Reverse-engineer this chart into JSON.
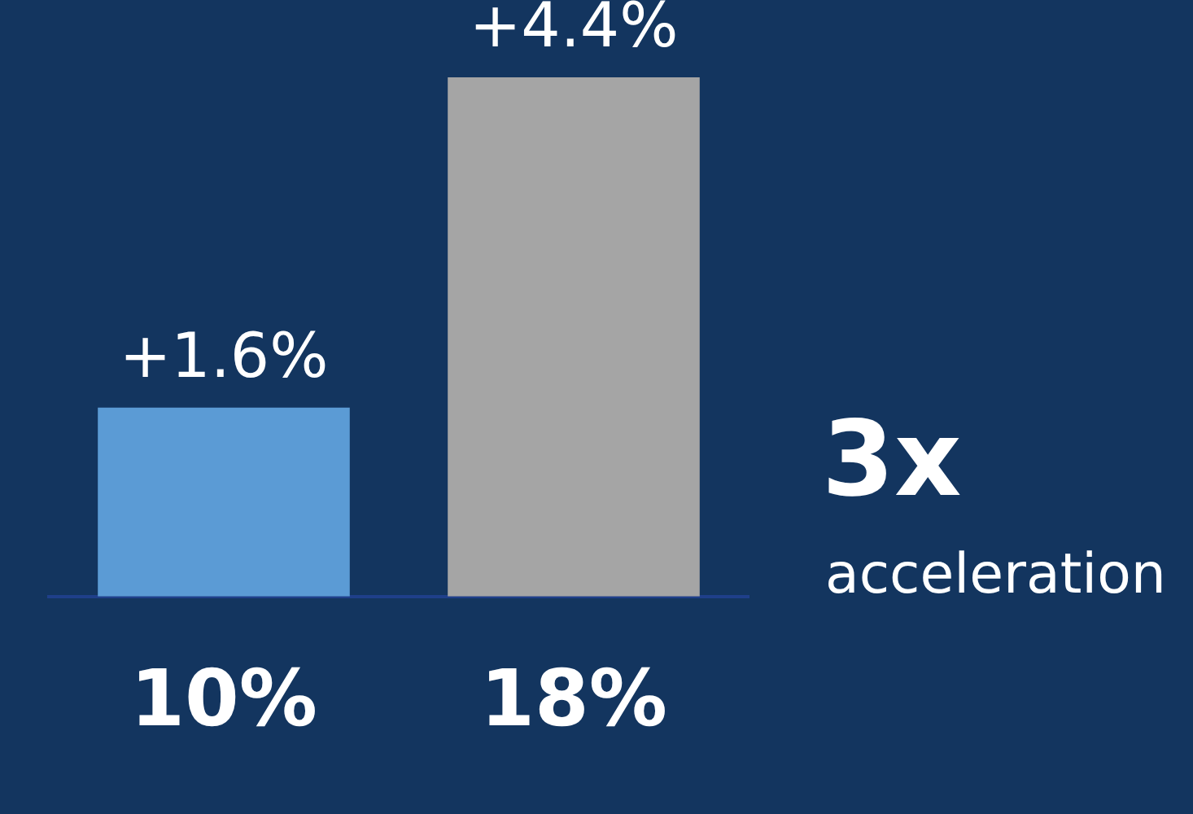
{
  "chart_data": {
    "type": "bar",
    "categories": [
      "10%",
      "18%"
    ],
    "values": [
      1.6,
      4.4
    ],
    "colors": [
      "#5b9bd5",
      "#a5a5a5"
    ],
    "value_labels": [
      "+1.6%",
      "+4.4%"
    ],
    "annotations": [
      "3x",
      "acceleration"
    ],
    "grid": false,
    "legend": false
  }
}
